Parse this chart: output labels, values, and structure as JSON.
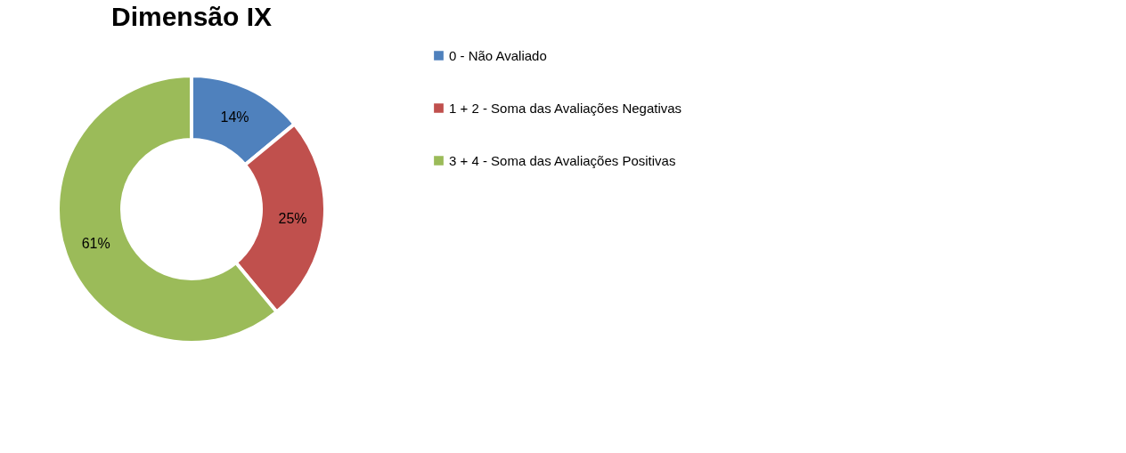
{
  "chart_data": {
    "type": "donut",
    "title": "Dimensão IX",
    "categories": [
      "0 - Não Avaliado",
      "1 + 2 - Soma das Avaliações Negativas",
      "3 + 4 - Soma das Avaliações Positivas"
    ],
    "values": [
      14,
      25,
      61
    ],
    "colors": [
      "#4f81bd",
      "#c0504d",
      "#9bbb59"
    ],
    "value_labels": [
      "14%",
      "25%",
      "61%"
    ],
    "legend": "right"
  }
}
